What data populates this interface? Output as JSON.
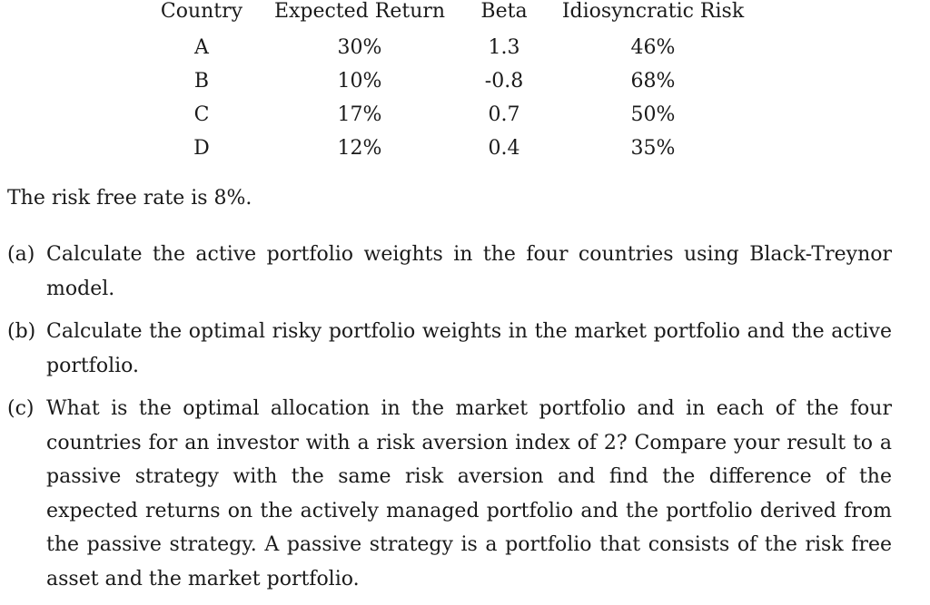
{
  "table": {
    "headers": [
      "Country",
      "Expected Return",
      "Beta",
      "Idiosyncratic Risk"
    ],
    "rows": [
      [
        "A",
        "30%",
        "1.3",
        "46%"
      ],
      [
        "B",
        "10%",
        "-0.8",
        "68%"
      ],
      [
        "C",
        "17%",
        "0.7",
        "50%"
      ],
      [
        "D",
        "12%",
        "0.4",
        "35%"
      ]
    ]
  },
  "risk_free_text": "The risk free rate is 8%.",
  "questions": [
    {
      "label": "(a)",
      "text": "Calculate the active portfolio weights in the four countries using Black-Treynor model."
    },
    {
      "label": "(b)",
      "text": "Calculate the optimal risky portfolio weights in the market portfolio and the active portfolio."
    },
    {
      "label": "(c)",
      "text": "What is the optimal allocation in the market portfolio and in each of the four countries for an investor with a risk aversion index of 2? Compare your result to a passive strategy with the same risk aversion and find the difference of the expected returns on the actively managed portfolio and the portfolio derived from the passive strategy. A passive strategy is a portfolio that consists of the risk free asset and the market portfolio."
    }
  ]
}
